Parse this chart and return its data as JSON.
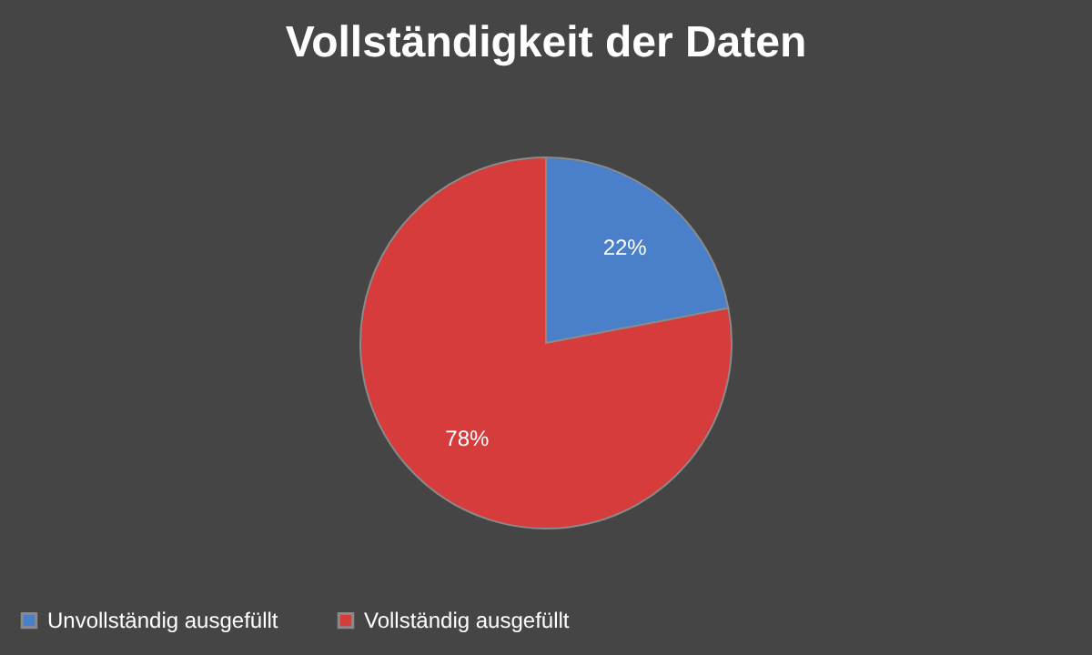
{
  "chart_data": {
    "type": "pie",
    "title": "Vollständigkeit der Daten",
    "categories": [
      "Unvollständig ausgefüllt",
      "Vollständig ausgefüllt"
    ],
    "values": [
      22,
      78
    ],
    "colors": [
      "#4a7fc9",
      "#d63c3c"
    ],
    "value_labels": [
      "22%",
      "78%"
    ],
    "legend": "bottom"
  }
}
